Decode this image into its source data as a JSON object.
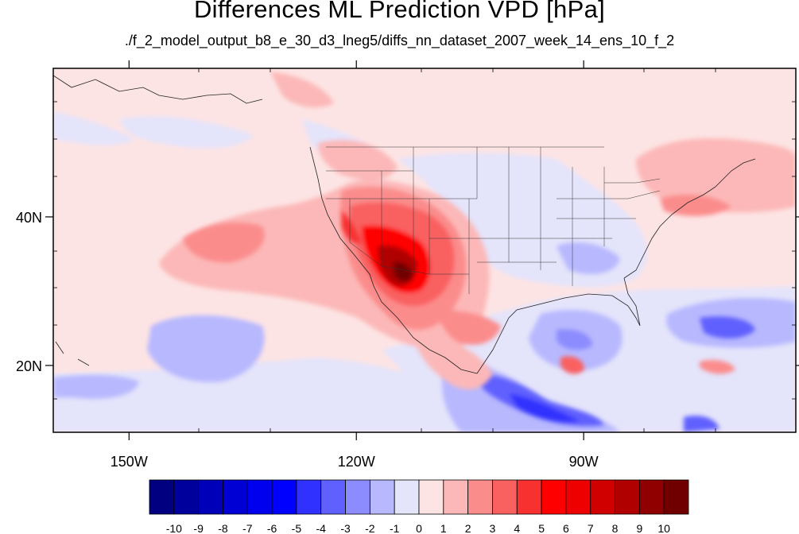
{
  "title": "Differences ML Prediction VPD [hPa]",
  "subtitle": "./f_2_model_output_b8_e_30_d3_lneg5/diffs_nn_dataset_2007_week_14_ens_10_f_2",
  "map": {
    "lon_range": [
      -160,
      -62
    ],
    "lat_range": [
      11,
      60
    ],
    "lat_labels": [
      {
        "lat": 40,
        "text": "40N"
      },
      {
        "lat": 20,
        "text": "20N"
      }
    ],
    "lon_labels": [
      {
        "lon": -150,
        "text": "150W"
      },
      {
        "lon": -120,
        "text": "120W"
      },
      {
        "lon": -90,
        "text": "90W"
      }
    ],
    "features": [
      {
        "type": "hot_core",
        "region": "desert southwest / lower Colorado River"
      },
      {
        "type": "positive_plume",
        "region": "eastern Pacific off California"
      },
      {
        "type": "positive_bias",
        "region": "northeastern US and Atlantic Canada"
      },
      {
        "type": "negative_bias",
        "region": "Gulf of Mexico and Caribbean"
      },
      {
        "type": "negative_bias",
        "region": "tropical eastern Pacific coast of Mexico"
      }
    ]
  },
  "colorbar": {
    "labels": [
      "-10",
      "-9",
      "-8",
      "-7",
      "-6",
      "-5",
      "-4",
      "-3",
      "-2",
      "-1",
      "0",
      "1",
      "2",
      "3",
      "4",
      "5",
      "6",
      "7",
      "8",
      "9",
      "10"
    ],
    "colors": [
      "#000080",
      "#00009c",
      "#0000b8",
      "#0000d4",
      "#0000ee",
      "#0000ff",
      "#3030ff",
      "#6060ff",
      "#8c8cff",
      "#b8b8ff",
      "#e4e4fb",
      "#fde4e4",
      "#fcb8b8",
      "#fb8c8c",
      "#f96060",
      "#f73030",
      "#ff0000",
      "#ee0000",
      "#d00000",
      "#b00000",
      "#900000",
      "#700000"
    ]
  }
}
